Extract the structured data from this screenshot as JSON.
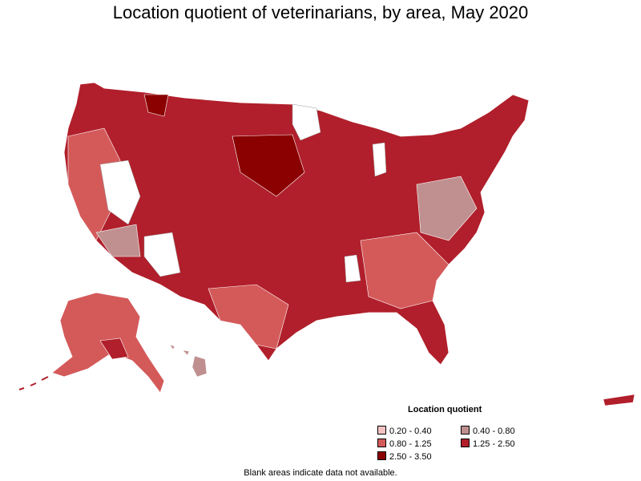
{
  "title": "Location quotient of veterinarians, by area, May 2020",
  "legend": {
    "title": "Location quotient",
    "items": [
      {
        "label": "0.20 - 0.40",
        "color": "#f4c3c3"
      },
      {
        "label": "0.40 - 0.80",
        "color": "#c09090"
      },
      {
        "label": "0.80 - 1.25",
        "color": "#d45a5a"
      },
      {
        "label": "1.25 - 2.50",
        "color": "#b01f2b"
      },
      {
        "label": "2.50 - 3.50",
        "color": "#8b0000"
      }
    ]
  },
  "note": "Blank areas indicate data not available.",
  "map": {
    "fill_dominant": "#b01f2b",
    "fill_secondary": "#d45a5a",
    "fill_low": "#c09090",
    "fill_high": "#8b0000",
    "blank": "#ffffff"
  }
}
